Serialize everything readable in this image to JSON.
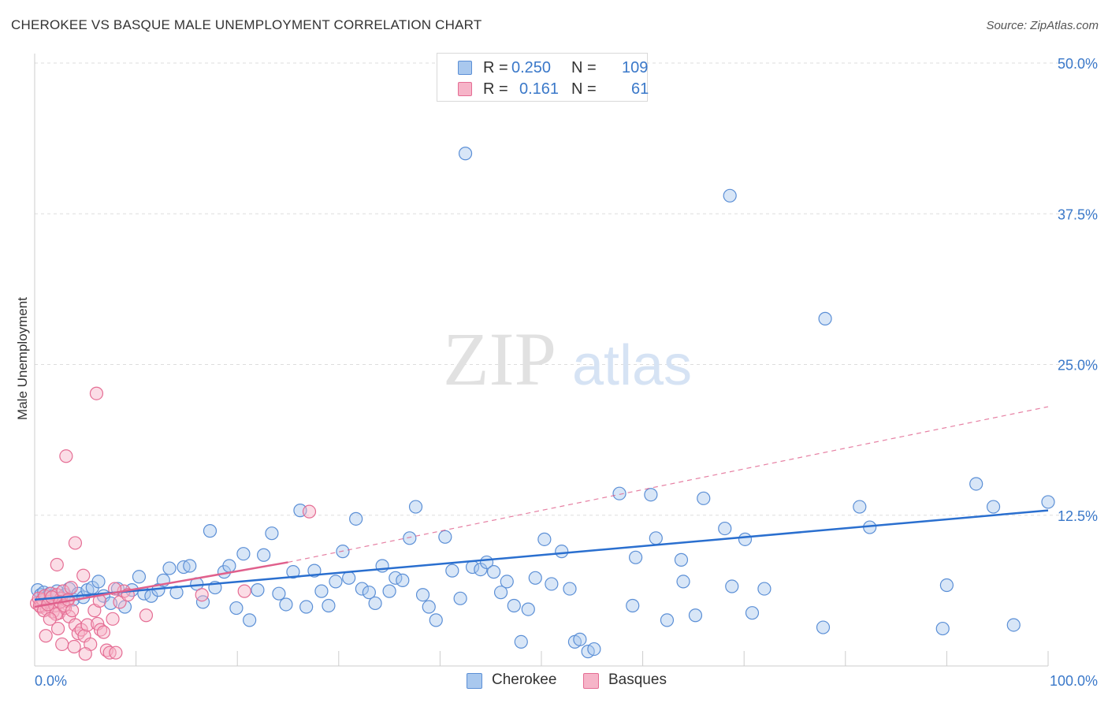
{
  "title": "CHEROKEE VS BASQUE MALE UNEMPLOYMENT CORRELATION CHART",
  "source": "Source: ZipAtlas.com",
  "watermark": {
    "zip": "ZIP",
    "atlas": "atlas"
  },
  "legend_top": {
    "rows": [
      {
        "r_label": "R =",
        "r_value": "0.250",
        "n_label": "N =",
        "n_value": "109"
      },
      {
        "r_label": "R =",
        "r_value": "0.161",
        "n_label": "N =",
        "n_value": "61"
      }
    ]
  },
  "legend_bottom": [
    "Cherokee",
    "Basques"
  ],
  "colors": {
    "blue_fill": "#a9c8ee",
    "blue_stroke": "#5b8fd6",
    "blue_line": "#2a6fcf",
    "pink_fill": "#f6b4c8",
    "pink_stroke": "#e56d94",
    "pink_line": "#e0608c",
    "axis_text": "#3a78c9",
    "grid": "#dddddd"
  },
  "chart_data": {
    "type": "scatter",
    "title": "CHEROKEE VS BASQUE MALE UNEMPLOYMENT CORRELATION CHART",
    "xlabel": "",
    "ylabel": "Male Unemployment",
    "xlim": [
      0,
      100
    ],
    "ylim": [
      0,
      50
    ],
    "x_tick_labels": [
      "0.0%",
      "100.0%"
    ],
    "y_ticks": [
      12.5,
      25.0,
      37.5,
      50.0
    ],
    "y_tick_labels": [
      "12.5%",
      "25.0%",
      "37.5%",
      "50.0%"
    ],
    "legend_position": "bottom",
    "series": [
      {
        "name": "Cherokee",
        "r": 0.25,
        "n": 109,
        "trend": {
          "x": [
            0,
            100
          ],
          "y": [
            5.5,
            12.9
          ]
        },
        "points": [
          [
            0.3,
            6.3
          ],
          [
            0.6,
            5.9
          ],
          [
            0.9,
            6.1
          ],
          [
            1.2,
            5.7
          ],
          [
            1.5,
            6.0
          ],
          [
            1.8,
            5.8
          ],
          [
            2.2,
            6.2
          ],
          [
            2.6,
            5.6
          ],
          [
            3.0,
            5.9
          ],
          [
            3.4,
            6.4
          ],
          [
            3.8,
            5.5
          ],
          [
            4.3,
            6.0
          ],
          [
            4.8,
            5.7
          ],
          [
            5.2,
            6.3
          ],
          [
            5.7,
            6.5
          ],
          [
            6.3,
            7.0
          ],
          [
            6.8,
            5.8
          ],
          [
            7.5,
            5.2
          ],
          [
            8.2,
            6.4
          ],
          [
            8.9,
            4.9
          ],
          [
            9.6,
            6.3
          ],
          [
            10.3,
            7.4
          ],
          [
            10.8,
            6.0
          ],
          [
            11.5,
            5.8
          ],
          [
            12.2,
            6.3
          ],
          [
            12.7,
            7.1
          ],
          [
            13.3,
            8.1
          ],
          [
            14.0,
            6.1
          ],
          [
            14.7,
            8.2
          ],
          [
            15.3,
            8.3
          ],
          [
            16.0,
            6.8
          ],
          [
            16.6,
            5.3
          ],
          [
            17.3,
            11.2
          ],
          [
            17.8,
            6.5
          ],
          [
            18.7,
            7.8
          ],
          [
            19.2,
            8.3
          ],
          [
            19.9,
            4.8
          ],
          [
            20.6,
            9.3
          ],
          [
            21.2,
            3.8
          ],
          [
            22.0,
            6.3
          ],
          [
            22.6,
            9.2
          ],
          [
            23.4,
            11.0
          ],
          [
            24.1,
            6.0
          ],
          [
            24.8,
            5.1
          ],
          [
            25.5,
            7.8
          ],
          [
            26.2,
            12.9
          ],
          [
            26.8,
            4.9
          ],
          [
            27.6,
            7.9
          ],
          [
            28.3,
            6.2
          ],
          [
            29.0,
            5.0
          ],
          [
            29.7,
            7.0
          ],
          [
            30.4,
            9.5
          ],
          [
            31.0,
            7.3
          ],
          [
            31.7,
            12.2
          ],
          [
            32.3,
            6.4
          ],
          [
            33.0,
            6.1
          ],
          [
            33.6,
            5.2
          ],
          [
            34.3,
            8.3
          ],
          [
            35.0,
            6.2
          ],
          [
            35.6,
            7.3
          ],
          [
            36.3,
            7.1
          ],
          [
            37.0,
            10.6
          ],
          [
            37.6,
            13.2
          ],
          [
            38.3,
            5.9
          ],
          [
            38.9,
            4.9
          ],
          [
            39.6,
            3.8
          ],
          [
            40.5,
            10.7
          ],
          [
            41.2,
            7.9
          ],
          [
            42.0,
            5.6
          ],
          [
            42.5,
            42.5
          ],
          [
            43.2,
            8.2
          ],
          [
            44.0,
            8.0
          ],
          [
            44.6,
            8.6
          ],
          [
            45.3,
            7.8
          ],
          [
            46.0,
            6.1
          ],
          [
            46.6,
            7.0
          ],
          [
            47.3,
            5.0
          ],
          [
            48.0,
            2.0
          ],
          [
            48.7,
            4.7
          ],
          [
            49.4,
            7.3
          ],
          [
            50.3,
            10.5
          ],
          [
            51.0,
            6.8
          ],
          [
            52.0,
            9.5
          ],
          [
            52.8,
            6.4
          ],
          [
            53.3,
            2.0
          ],
          [
            53.8,
            2.2
          ],
          [
            54.6,
            1.2
          ],
          [
            55.2,
            1.4
          ],
          [
            57.7,
            14.3
          ],
          [
            59.0,
            5.0
          ],
          [
            59.3,
            9.0
          ],
          [
            60.8,
            14.2
          ],
          [
            61.3,
            10.6
          ],
          [
            62.4,
            3.8
          ],
          [
            63.8,
            8.8
          ],
          [
            64.0,
            7.0
          ],
          [
            65.2,
            4.2
          ],
          [
            66.0,
            13.9
          ],
          [
            68.1,
            11.4
          ],
          [
            68.6,
            39.0
          ],
          [
            68.8,
            6.6
          ],
          [
            70.1,
            10.5
          ],
          [
            70.8,
            4.4
          ],
          [
            72.0,
            6.4
          ],
          [
            77.8,
            3.2
          ],
          [
            78.0,
            28.8
          ],
          [
            81.4,
            13.2
          ],
          [
            82.4,
            11.5
          ],
          [
            89.6,
            3.1
          ],
          [
            90.0,
            6.7
          ],
          [
            92.9,
            15.1
          ],
          [
            94.6,
            13.2
          ],
          [
            96.6,
            3.4
          ],
          [
            100.0,
            13.6
          ]
        ]
      },
      {
        "name": "Basques",
        "r": 0.161,
        "n": 61,
        "trend": {
          "x": [
            0,
            25
          ],
          "y": [
            4.9,
            8.6
          ],
          "dashed_extension": {
            "x": [
              25,
              100
            ],
            "y": [
              8.6,
              21.5
            ]
          }
        },
        "points": [
          [
            0.2,
            5.2
          ],
          [
            0.4,
            5.6
          ],
          [
            0.6,
            4.9
          ],
          [
            0.8,
            5.5
          ],
          [
            1.0,
            5.8
          ],
          [
            1.2,
            4.7
          ],
          [
            1.4,
            5.3
          ],
          [
            1.6,
            6.0
          ],
          [
            1.8,
            4.5
          ],
          [
            2.0,
            5.0
          ],
          [
            2.2,
            5.9
          ],
          [
            2.4,
            4.4
          ],
          [
            2.6,
            5.6
          ],
          [
            2.8,
            6.2
          ],
          [
            3.0,
            4.8
          ],
          [
            3.2,
            5.4
          ],
          [
            3.4,
            4.1
          ],
          [
            3.6,
            6.5
          ],
          [
            0.5,
            5.0
          ],
          [
            0.9,
            4.6
          ],
          [
            1.3,
            5.1
          ],
          [
            1.7,
            5.7
          ],
          [
            2.1,
            4.3
          ],
          [
            2.5,
            5.3
          ],
          [
            2.9,
            5.0
          ],
          [
            3.3,
            5.5
          ],
          [
            3.7,
            4.6
          ],
          [
            4.0,
            3.4
          ],
          [
            4.3,
            2.7
          ],
          [
            4.6,
            3.0
          ],
          [
            4.9,
            2.5
          ],
          [
            5.2,
            3.4
          ],
          [
            5.5,
            1.8
          ],
          [
            5.9,
            4.6
          ],
          [
            6.2,
            3.5
          ],
          [
            6.5,
            3.0
          ],
          [
            6.8,
            2.8
          ],
          [
            7.1,
            1.3
          ],
          [
            7.4,
            1.1
          ],
          [
            7.7,
            3.9
          ],
          [
            8.0,
            1.1
          ],
          [
            8.4,
            5.3
          ],
          [
            8.8,
            6.2
          ],
          [
            9.2,
            5.9
          ],
          [
            2.2,
            8.4
          ],
          [
            3.1,
            17.4
          ],
          [
            4.0,
            10.2
          ],
          [
            4.8,
            7.5
          ],
          [
            6.1,
            22.6
          ],
          [
            6.4,
            5.4
          ],
          [
            1.1,
            2.5
          ],
          [
            2.7,
            1.8
          ],
          [
            3.9,
            1.6
          ],
          [
            5.0,
            1.0
          ],
          [
            7.9,
            6.4
          ],
          [
            16.5,
            5.9
          ],
          [
            20.7,
            6.2
          ],
          [
            27.1,
            12.8
          ],
          [
            11.0,
            4.2
          ],
          [
            1.5,
            3.9
          ],
          [
            2.3,
            3.1
          ]
        ]
      }
    ]
  }
}
